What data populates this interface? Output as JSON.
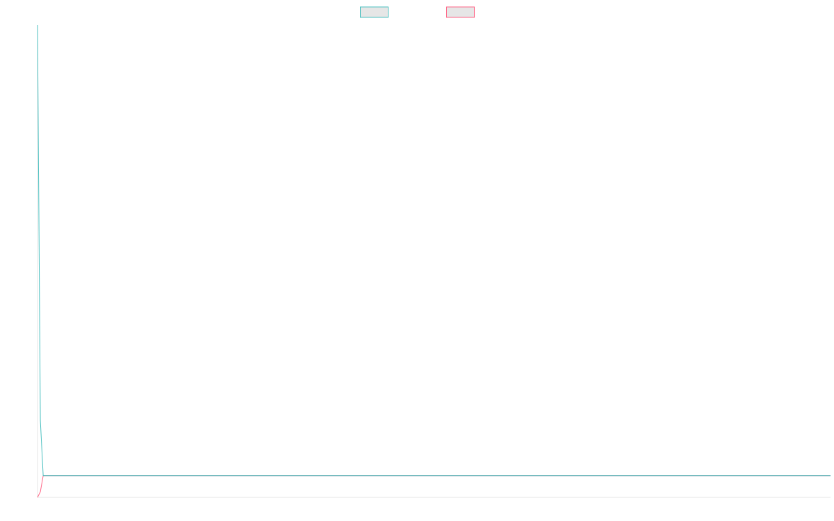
{
  "chart_data": {
    "type": "line",
    "x": [
      0,
      0.5,
      1,
      140
    ],
    "xlim": [
      0,
      140
    ],
    "ylim": [
      0,
      100
    ],
    "series": [
      {
        "color": "#4bc0c0",
        "values": [
          100,
          16.3,
          4.6,
          4.6
        ]
      },
      {
        "color": "#ff6384",
        "values": [
          0,
          1.2,
          4.6,
          4.6
        ]
      }
    ]
  }
}
